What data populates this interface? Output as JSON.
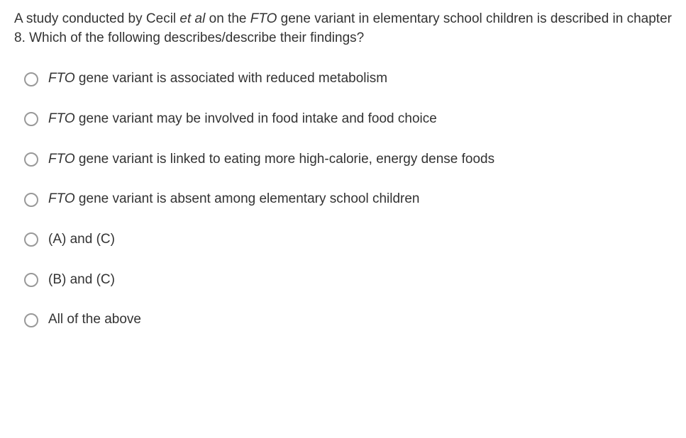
{
  "question": {
    "pre_author": "A study conducted by Cecil ",
    "author_italic": "et al",
    "mid1": " on the ",
    "gene_italic": "FTO",
    "post_gene": " gene variant in elementary school children is described in chapter 8. Which of the following describes/describe their findings?"
  },
  "options": [
    {
      "prefix_italic": "FTO",
      "text": " gene variant is associated with reduced metabolism"
    },
    {
      "prefix_italic": "FTO",
      "text": " gene variant may be involved in food intake and food choice"
    },
    {
      "prefix_italic": "FTO",
      "text": " gene variant is linked to eating more high-calorie, energy dense foods"
    },
    {
      "prefix_italic": "FTO",
      "text": " gene variant is absent among elementary school children"
    },
    {
      "prefix_italic": "",
      "text": "(A) and (C)"
    },
    {
      "prefix_italic": "",
      "text": "(B) and (C)"
    },
    {
      "prefix_italic": "",
      "text": "All of the above"
    }
  ],
  "colors": {
    "text": "#333333",
    "radio_border": "#999999",
    "background": "#ffffff"
  }
}
